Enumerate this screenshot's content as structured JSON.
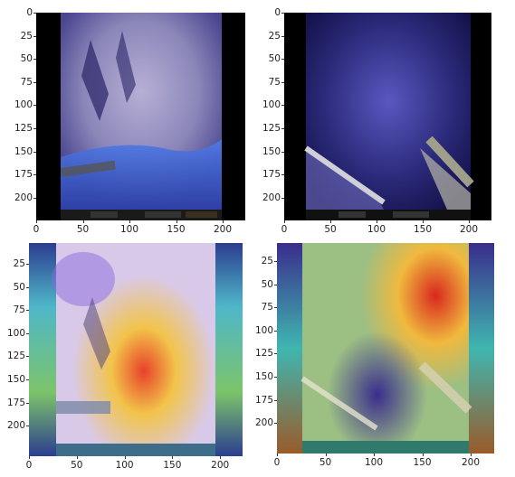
{
  "figure": {
    "panels": [
      {
        "id": "top-left",
        "description": "surgical endoscope frame, bluish tissue with instrument at lower left",
        "y_ticks": [
          "0",
          "25",
          "50",
          "75",
          "100",
          "125",
          "150",
          "175",
          "200"
        ],
        "x_ticks": [
          "0",
          "50",
          "100",
          "150",
          "200"
        ],
        "colors": {
          "tissue": "#8a86b8",
          "deep": "#3d3aa0",
          "bright": "#3f6fe0",
          "border": "#000000"
        }
      },
      {
        "id": "top-right",
        "description": "surgical endoscope frame, dark blue cavity with two instruments",
        "y_ticks": [
          "0",
          "25",
          "50",
          "75",
          "100",
          "125",
          "150",
          "175",
          "200"
        ],
        "x_ticks": [
          "0",
          "50",
          "100",
          "150",
          "200"
        ],
        "colors": {
          "tissue": "#2b2a7a",
          "deep": "#14124a",
          "bright": "#6a6ad0",
          "border": "#000000"
        }
      },
      {
        "id": "bottom-left",
        "description": "attention heatmap overlay on top-left frame",
        "y_ticks": [
          "25",
          "50",
          "75",
          "100",
          "125",
          "150",
          "175",
          "200"
        ],
        "x_ticks": [
          "0",
          "50",
          "100",
          "150",
          "200"
        ],
        "colors": {
          "hot": "#e8412a",
          "warm": "#f2c44a",
          "cool": "#4fb7c9",
          "cold": "#2b3d8f"
        }
      },
      {
        "id": "bottom-right",
        "description": "attention heatmap overlay on top-right frame",
        "y_ticks": [
          "25",
          "50",
          "75",
          "100",
          "125",
          "150",
          "175",
          "200"
        ],
        "x_ticks": [
          "0",
          "50",
          "100",
          "150",
          "200"
        ],
        "colors": {
          "hot": "#d8281e",
          "warm": "#f0b93e",
          "cool": "#3fb6b0",
          "cold": "#3a2d8c"
        }
      }
    ]
  }
}
